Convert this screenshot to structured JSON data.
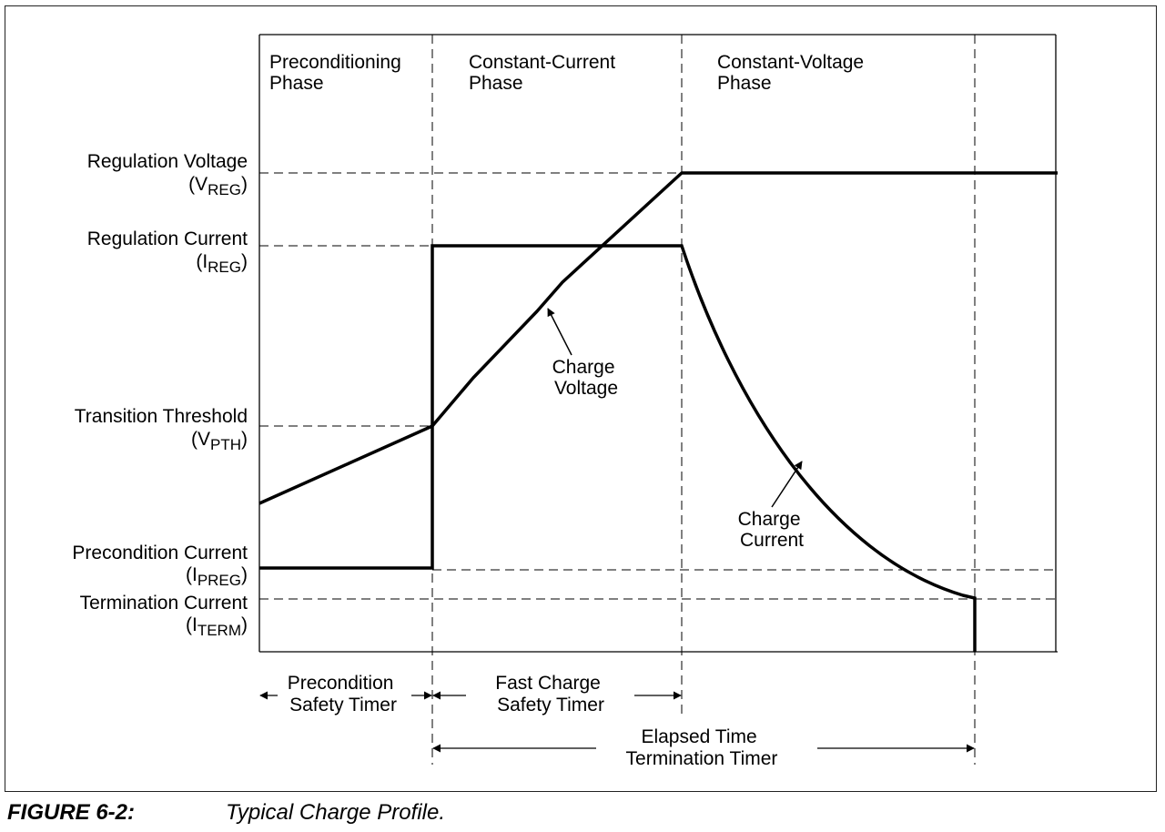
{
  "figure": {
    "number": "FIGURE 6-2:",
    "title": "Typical Charge Profile."
  },
  "phases": {
    "preconditioning": [
      "Preconditioning",
      "Phase"
    ],
    "constant_current": [
      "Constant-Current",
      "Phase"
    ],
    "constant_voltage": [
      "Constant-Voltage",
      "Phase"
    ]
  },
  "levels": {
    "regulation_voltage": {
      "label": "Regulation Voltage",
      "symbol": "V",
      "subscript": "REG"
    },
    "regulation_current": {
      "label": "Regulation Current",
      "symbol": "I",
      "subscript": "REG"
    },
    "transition_threshold": {
      "label": "Transition Threshold",
      "symbol": "V",
      "subscript": "PTH"
    },
    "precondition_current": {
      "label": "Precondition Current",
      "symbol": "I",
      "subscript": "PREG"
    },
    "termination_current": {
      "label": "Termination Current",
      "symbol": "I",
      "subscript": "TERM"
    }
  },
  "curves": {
    "charge_voltage": [
      "Charge",
      "Voltage"
    ],
    "charge_current": [
      "Charge",
      "Current"
    ]
  },
  "timers": {
    "precondition_safety": [
      "Precondition",
      "Safety Timer"
    ],
    "fast_charge_safety": [
      "Fast Charge",
      "Safety Timer"
    ],
    "elapsed_time_termination": [
      "Elapsed Time",
      "Termination Timer"
    ]
  },
  "colors": {
    "ink": "#000000",
    "frame": "#222222",
    "background": "#ffffff"
  }
}
